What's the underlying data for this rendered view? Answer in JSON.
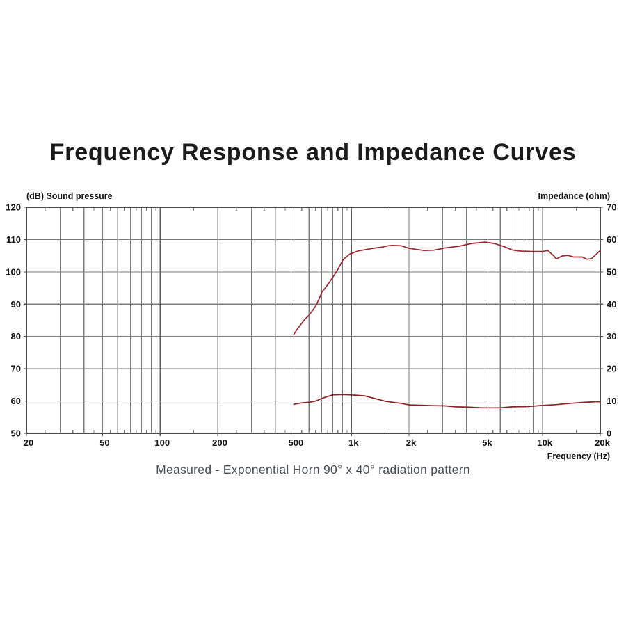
{
  "page": {
    "title": "Frequency Response and Impedance Curves",
    "caption": "Measured - Exponential Horn 90° x 40° radiation pattern"
  },
  "chart_data": {
    "type": "line",
    "title": "Frequency Response and Impedance Curves",
    "background": "#ffffff",
    "x_axis": {
      "label": "Frequency  (Hz)",
      "scale": "log",
      "min": 20,
      "max": 20000,
      "ticks": [
        {
          "v": 20,
          "label": "20"
        },
        {
          "v": 50,
          "label": "50"
        },
        {
          "v": 100,
          "label": "100"
        },
        {
          "v": 200,
          "label": "200"
        },
        {
          "v": 500,
          "label": "500"
        },
        {
          "v": 1000,
          "label": "1k"
        },
        {
          "v": 2000,
          "label": "2k"
        },
        {
          "v": 5000,
          "label": "5k"
        },
        {
          "v": 10000,
          "label": "10k"
        },
        {
          "v": 20000,
          "label": "20k"
        }
      ]
    },
    "y_left": {
      "label": "(dB)  Sound pressure",
      "min": 50,
      "max": 120,
      "step": 10,
      "ticks": [
        120,
        110,
        100,
        90,
        80,
        70,
        60,
        50
      ]
    },
    "y_right": {
      "label": "Impedance  (ohm)",
      "min": 0,
      "max": 70,
      "step": 10,
      "ticks": [
        70,
        60,
        50,
        40,
        30,
        20,
        10,
        0
      ]
    },
    "grid": {
      "on": true,
      "minor_color": "#7b7b7b",
      "decade_color": "#5e5e5e",
      "frame_color": "#4c4c4c",
      "minor_lines": [
        30,
        40,
        50,
        60,
        70,
        80,
        90,
        200,
        300,
        400,
        500,
        600,
        700,
        800,
        900,
        2000,
        3000,
        4000,
        5000,
        6000,
        7000,
        8000,
        9000
      ],
      "decade_lines": [
        100,
        1000,
        10000
      ],
      "half_ticks": [
        25,
        35,
        45,
        55,
        65,
        75,
        85,
        95,
        150,
        250,
        350,
        450,
        550,
        650,
        750,
        850,
        950,
        1500,
        2500,
        3500,
        4500,
        5500,
        6500,
        7500,
        8500,
        9500,
        15000
      ]
    },
    "series": [
      {
        "name": "sound-pressure",
        "legend": "Sound pressure (dB)",
        "axis": "left",
        "color": "#a2242e",
        "points": [
          [
            500,
            80.6
          ],
          [
            520,
            82.2
          ],
          [
            545,
            83.8
          ],
          [
            570,
            85.3
          ],
          [
            595,
            86.3
          ],
          [
            625,
            88.0
          ],
          [
            650,
            89.4
          ],
          [
            680,
            91.8
          ],
          [
            700,
            93.7
          ],
          [
            730,
            95.0
          ],
          [
            755,
            96.2
          ],
          [
            790,
            97.9
          ],
          [
            845,
            100.5
          ],
          [
            905,
            103.8
          ],
          [
            985,
            105.6
          ],
          [
            1090,
            106.5
          ],
          [
            1270,
            107.2
          ],
          [
            1460,
            107.7
          ],
          [
            1560,
            108.1
          ],
          [
            1640,
            108.2
          ],
          [
            1820,
            108.1
          ],
          [
            2000,
            107.3
          ],
          [
            2400,
            106.6
          ],
          [
            2700,
            106.7
          ],
          [
            3080,
            107.4
          ],
          [
            3630,
            107.9
          ],
          [
            4270,
            108.8
          ],
          [
            4980,
            109.2
          ],
          [
            5570,
            108.8
          ],
          [
            6230,
            107.9
          ],
          [
            6970,
            106.7
          ],
          [
            7770,
            106.4
          ],
          [
            8900,
            106.3
          ],
          [
            10000,
            106.3
          ],
          [
            10650,
            106.6
          ],
          [
            11400,
            105.0
          ],
          [
            11800,
            104.0
          ],
          [
            12600,
            104.9
          ],
          [
            13550,
            105.1
          ],
          [
            14500,
            104.6
          ],
          [
            16100,
            104.6
          ],
          [
            17000,
            103.9
          ],
          [
            18000,
            104.1
          ],
          [
            19100,
            105.5
          ],
          [
            20000,
            106.6
          ]
        ]
      },
      {
        "name": "impedance",
        "legend": "Impedance (ohm)",
        "axis": "right",
        "color": "#8d1f27",
        "points": [
          [
            500,
            9.0
          ],
          [
            545,
            9.4
          ],
          [
            600,
            9.6
          ],
          [
            650,
            10.0
          ],
          [
            700,
            10.8
          ],
          [
            750,
            11.4
          ],
          [
            800,
            11.9
          ],
          [
            910,
            12.0
          ],
          [
            1000,
            11.9
          ],
          [
            1170,
            11.6
          ],
          [
            1340,
            10.7
          ],
          [
            1490,
            10.0
          ],
          [
            1640,
            9.6
          ],
          [
            1820,
            9.3
          ],
          [
            2000,
            8.8
          ],
          [
            2300,
            8.7
          ],
          [
            2600,
            8.6
          ],
          [
            3100,
            8.5
          ],
          [
            3500,
            8.2
          ],
          [
            4150,
            8.1
          ],
          [
            4800,
            7.9
          ],
          [
            5500,
            7.9
          ],
          [
            6000,
            7.9
          ],
          [
            6900,
            8.2
          ],
          [
            8300,
            8.3
          ],
          [
            9700,
            8.6
          ],
          [
            11800,
            8.9
          ],
          [
            14000,
            9.3
          ],
          [
            16600,
            9.6
          ],
          [
            19000,
            9.8
          ],
          [
            20000,
            9.8
          ]
        ]
      }
    ]
  }
}
